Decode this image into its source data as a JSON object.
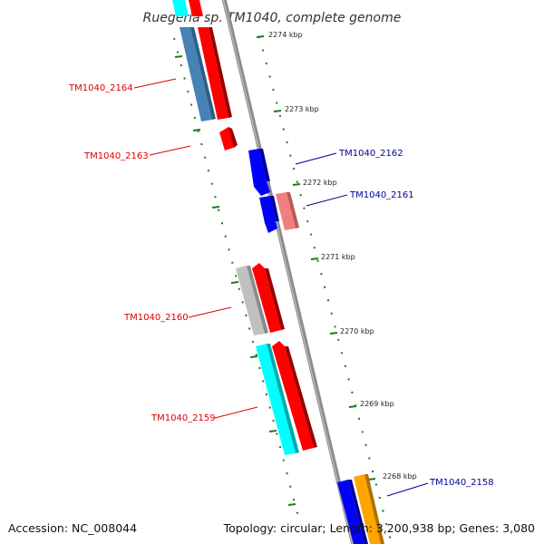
{
  "title": "Ruegeria sp. TM1040, complete genome",
  "footer": {
    "accession": "Accession: NC_008044",
    "topology": "Topology: circular; Length: 3,200,938 bp; Genes: 3,080"
  },
  "scale": {
    "ticks": [
      {
        "label": "2274 kbp"
      },
      {
        "label": "2273 kbp"
      },
      {
        "label": "2272 kbp"
      },
      {
        "label": "2271 kbp"
      },
      {
        "label": "2270 kbp"
      },
      {
        "label": "2269 kbp"
      },
      {
        "label": "2268 kbp"
      }
    ]
  },
  "genes": [
    {
      "label": "TM1040_2164",
      "strand": "forward",
      "color": "#ff0000"
    },
    {
      "label": "TM1040_2163",
      "strand": "forward",
      "color": "#ff0000"
    },
    {
      "label": "TM1040_2162",
      "strand": "reverse",
      "color": "#0000ff"
    },
    {
      "label": "TM1040_2161",
      "strand": "reverse",
      "color": "#0000ff"
    },
    {
      "label": "TM1040_2160",
      "strand": "forward",
      "color": "#ff0000"
    },
    {
      "label": "TM1040_2159",
      "strand": "forward",
      "color": "#ff0000"
    },
    {
      "label": "TM1040_2158",
      "strand": "reverse",
      "color": "#0000ff"
    }
  ],
  "colors": {
    "backbone": "#888888",
    "tick": "#1a7a1a",
    "forward_label": "#dd0000",
    "reverse_label": "#000099",
    "cog_steelblue": "#4682b4",
    "cog_salmon": "#f08080",
    "cog_silver": "#c0c0c0",
    "cog_cyan": "#00ffff",
    "cog_orange": "#ffa500"
  }
}
